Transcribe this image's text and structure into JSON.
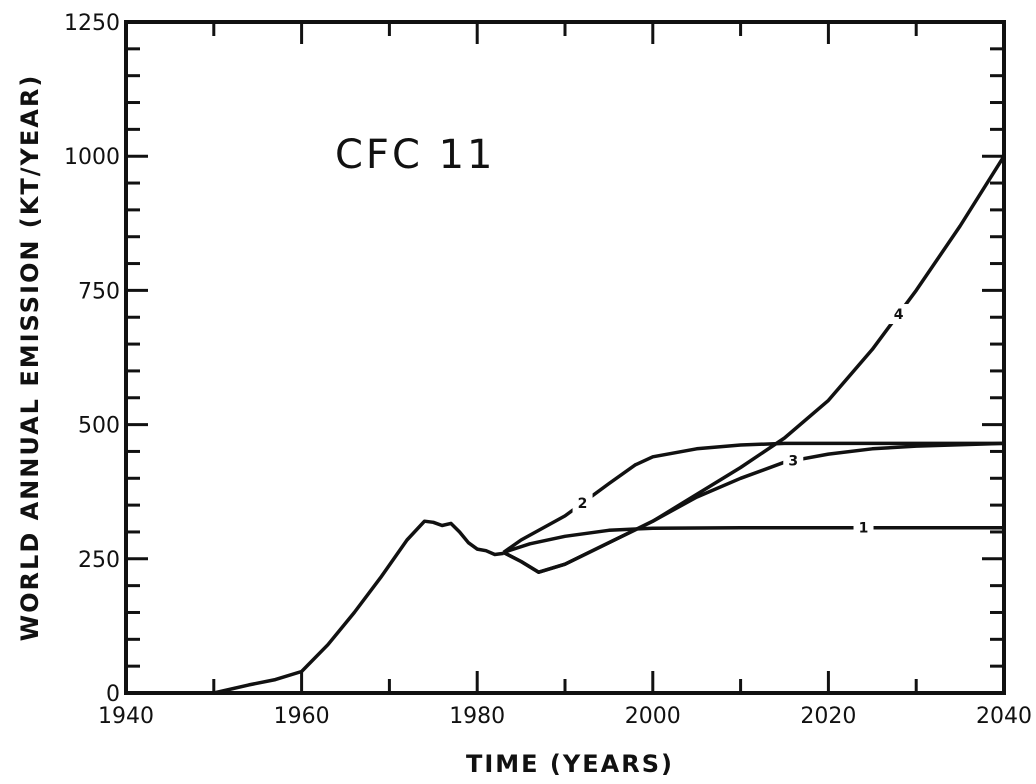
{
  "chart_data": {
    "type": "line",
    "title": "CFC 11",
    "xlabel": "TIME (YEARS)",
    "ylabel": "WORLD ANNUAL EMISSION (KT/YEAR)",
    "xlim": [
      1940,
      2040
    ],
    "ylim": [
      0,
      1250
    ],
    "x_ticks": [
      1940,
      1960,
      1980,
      2000,
      2020,
      2040
    ],
    "y_ticks": [
      0,
      250,
      500,
      750,
      1000,
      1250
    ],
    "grid": false,
    "historical": {
      "x": [
        1950,
        1954,
        1957,
        1960,
        1963,
        1966,
        1969,
        1972,
        1974,
        1975,
        1976,
        1977,
        1978,
        1979,
        1980,
        1981,
        1982,
        1983
      ],
      "y": [
        0,
        15,
        25,
        40,
        90,
        150,
        215,
        285,
        320,
        318,
        312,
        316,
        300,
        280,
        268,
        265,
        258,
        260
      ]
    },
    "series": [
      {
        "name": "1",
        "x": [
          1983,
          1986,
          1990,
          1995,
          2000,
          2010,
          2020,
          2030,
          2040
        ],
        "y": [
          262,
          278,
          292,
          303,
          307,
          308,
          308,
          308,
          308
        ]
      },
      {
        "name": "2",
        "x": [
          1983,
          1985,
          1990,
          1995,
          1998,
          2000,
          2005,
          2010,
          2015,
          2020,
          2030,
          2040
        ],
        "y": [
          262,
          285,
          330,
          390,
          425,
          440,
          455,
          462,
          465,
          465,
          465,
          465
        ]
      },
      {
        "name": "3",
        "x": [
          1983,
          1985,
          1987,
          1990,
          1995,
          2000,
          2005,
          2010,
          2015,
          2020,
          2025,
          2030,
          2040
        ],
        "y": [
          262,
          245,
          225,
          240,
          280,
          320,
          365,
          400,
          430,
          445,
          455,
          460,
          465
        ]
      },
      {
        "name": "4",
        "x": [
          1983,
          1985,
          1987,
          1990,
          1995,
          2000,
          2005,
          2010,
          2015,
          2020,
          2025,
          2030,
          2035,
          2040
        ],
        "y": [
          262,
          245,
          225,
          240,
          280,
          320,
          370,
          420,
          475,
          545,
          640,
          750,
          870,
          1000
        ]
      }
    ],
    "series_label_positions_x": [
      2024,
      1992,
      2016,
      2028
    ]
  }
}
